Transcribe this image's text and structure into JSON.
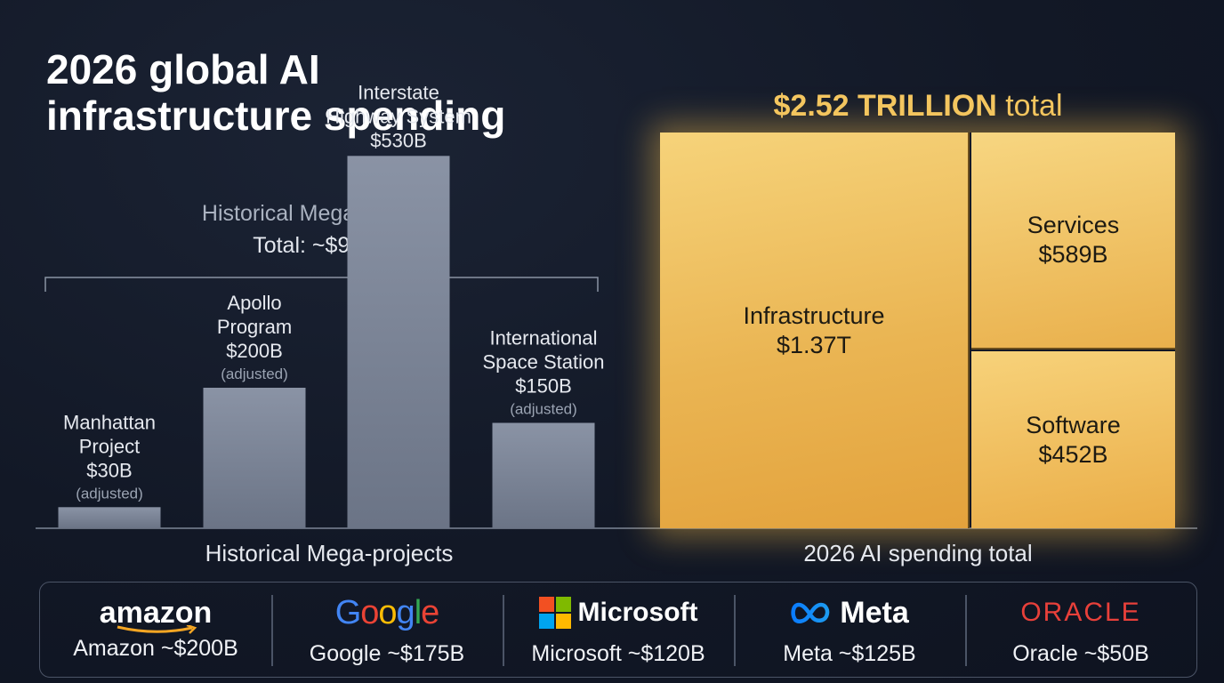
{
  "title_line1": "2026 global AI",
  "title_line2": "infrastructure spending",
  "historical": {
    "header": "Historical Mega-projects",
    "total": "Total: ~$910B",
    "xlabel": "Historical Mega-projects"
  },
  "chart_data": [
    {
      "type": "bar",
      "title": "Historical Mega-projects",
      "subtitle": "Total: ~$910B",
      "xlabel": "Historical Mega-projects",
      "ylim": [
        0,
        600
      ],
      "categories": [
        "Manhattan Project",
        "Apollo Program",
        "Interstate Highway System",
        "International Space Station"
      ],
      "values": [
        30,
        200,
        530,
        150
      ],
      "bars": [
        {
          "label_lines": [
            "Manhattan",
            "Project"
          ],
          "value_label": "$30B",
          "note": "(adjusted)",
          "value": 30
        },
        {
          "label_lines": [
            "Apollo",
            "Program"
          ],
          "value_label": "$200B",
          "note": "(adjusted)",
          "value": 200
        },
        {
          "label_lines": [
            "Interstate",
            "Highway System"
          ],
          "value_label": "$530B",
          "note": "",
          "value": 530
        },
        {
          "label_lines": [
            "International",
            "Space Station"
          ],
          "value_label": "$150B",
          "note": "(adjusted)",
          "value": 150
        }
      ],
      "bar_color": "#7d8799"
    },
    {
      "type": "treemap",
      "title_bold": "$2.52 TRILLION",
      "title_rest": "total",
      "xlabel": "2026 AI spending total",
      "segments": [
        {
          "name": "Infrastructure",
          "value_label": "$1.37T",
          "value": 1370
        },
        {
          "name": "Services",
          "value_label": "$589B",
          "value": 589
        },
        {
          "name": "Software",
          "value_label": "$452B",
          "value": 452
        }
      ],
      "color": "#eab553"
    }
  ],
  "companies": [
    {
      "logo": "amazon",
      "value": "Amazon ~$200B"
    },
    {
      "logo": "Google",
      "value": "Google ~$175B"
    },
    {
      "logo": "Microsoft",
      "value": "Microsoft ~$120B"
    },
    {
      "logo": "Meta",
      "value": "Meta ~$125B"
    },
    {
      "logo": "ORACLE",
      "value": "Oracle ~$50B"
    }
  ],
  "colors": {
    "background": "#121826",
    "gold": "#f4c761",
    "bar": "#7d8799",
    "oracle_red": "#e8403a"
  }
}
